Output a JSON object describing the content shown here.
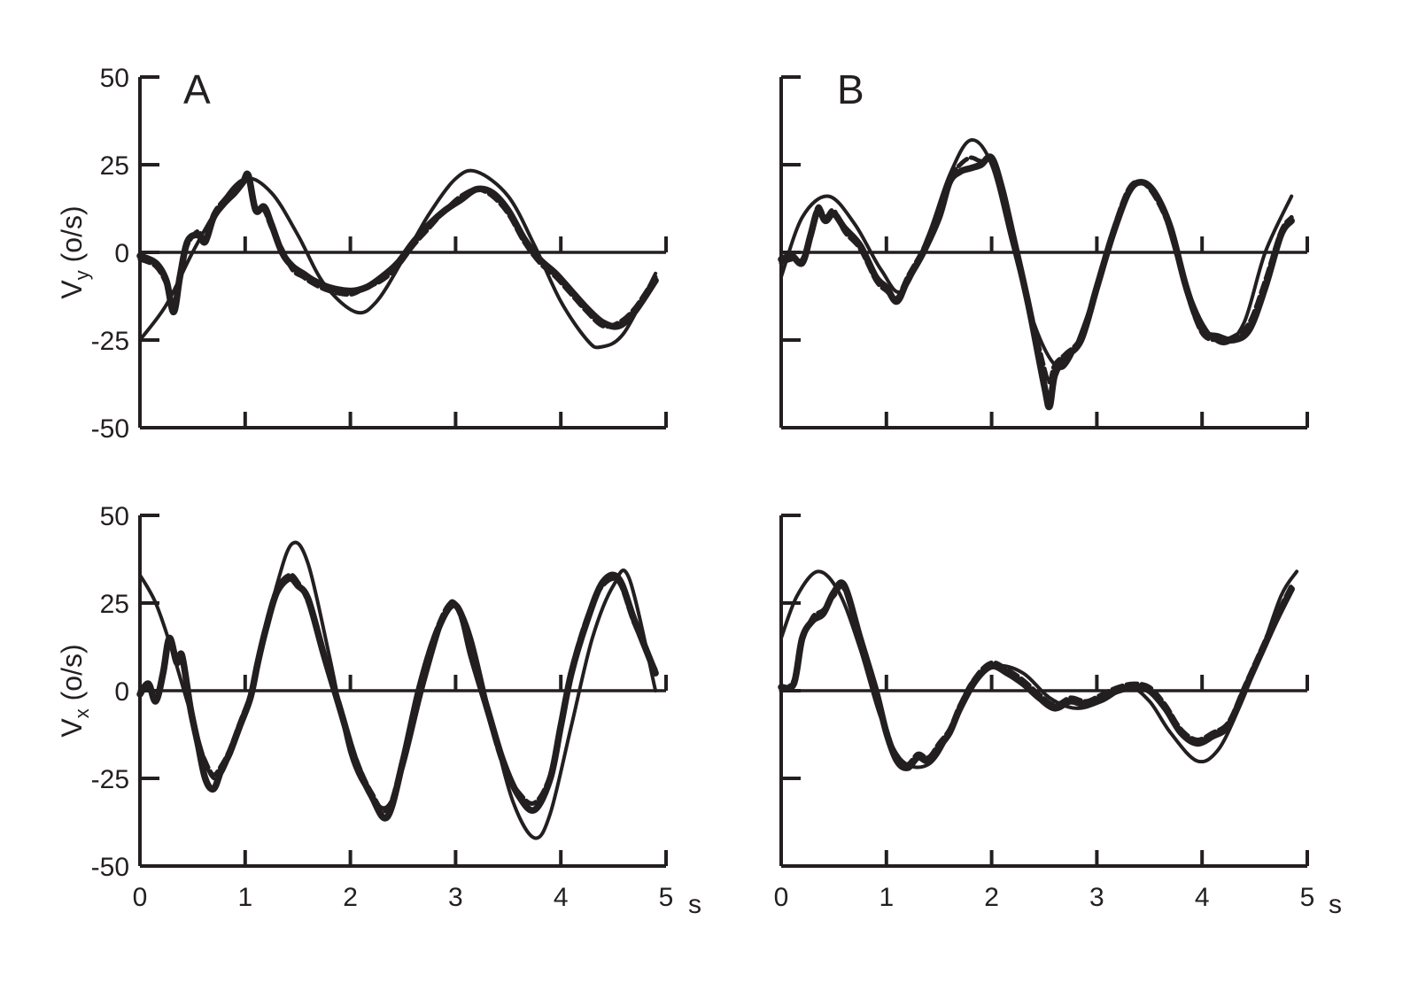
{
  "colors": {
    "ink": "#231f20",
    "background": "#ffffff"
  },
  "y_axis_labels": {
    "top": {
      "main": "V",
      "sub": "y",
      "unit": " (o/s)"
    },
    "bottom": {
      "main": "V",
      "sub": "x",
      "unit": " (o/s)"
    }
  },
  "x_unit": "s",
  "chart_data": [
    {
      "type": "line",
      "panel": "A-top",
      "letter": "A",
      "xlim": [
        0,
        5
      ],
      "ylim": [
        -50,
        50
      ],
      "xticks": [
        0,
        1,
        2,
        3,
        4,
        5
      ],
      "yticks": [
        -50,
        -25,
        0,
        25,
        50
      ],
      "ytick_labels": [
        "-50",
        "-25",
        "0",
        "25",
        "50"
      ],
      "xtick_labels": [],
      "series": [
        {
          "style": "thin",
          "x": [
            0,
            0.25,
            0.5,
            0.75,
            1.0,
            1.25,
            1.5,
            1.75,
            2.05,
            2.25,
            2.5,
            2.75,
            3.0,
            3.2,
            3.5,
            3.75,
            4.0,
            4.25,
            4.38,
            4.6,
            4.9
          ],
          "y": [
            -25,
            -15,
            0,
            13,
            21,
            17,
            5,
            -9,
            -17,
            -14,
            -2,
            11,
            21,
            23,
            16,
            2,
            -14,
            -25,
            -27,
            -23,
            -6
          ]
        },
        {
          "style": "thick",
          "x": [
            0,
            0.15,
            0.25,
            0.32,
            0.38,
            0.45,
            0.55,
            0.62,
            0.7,
            0.8,
            0.9,
            0.98,
            1.03,
            1.1,
            1.18,
            1.25,
            1.35,
            1.45,
            1.55,
            1.65,
            1.8,
            2.0,
            2.15,
            2.3,
            2.45,
            2.6,
            2.75,
            2.9,
            3.05,
            3.2,
            3.35,
            3.5,
            3.65,
            3.8,
            3.95,
            4.1,
            4.25,
            4.4,
            4.55,
            4.7,
            4.9
          ],
          "y": [
            -1,
            -3,
            -8,
            -17,
            -7,
            3,
            5,
            3,
            10,
            14,
            17,
            20,
            22,
            12,
            13,
            8,
            0,
            -4,
            -6,
            -8,
            -10,
            -11,
            -10,
            -7,
            -3,
            3,
            8,
            12,
            15,
            18,
            17,
            12,
            4,
            -2,
            -6,
            -11,
            -16,
            -20,
            -21,
            -17,
            -8
          ]
        },
        {
          "style": "dashed",
          "x": [
            0,
            0.15,
            0.25,
            0.32,
            0.38,
            0.45,
            0.55,
            0.62,
            0.7,
            0.8,
            0.9,
            0.98,
            1.03,
            1.1,
            1.18,
            1.25,
            1.35,
            1.45,
            1.55,
            1.65,
            1.8,
            2.0,
            2.15,
            2.3,
            2.45,
            2.6,
            2.75,
            2.9,
            3.05,
            3.2,
            3.35,
            3.5,
            3.65,
            3.8,
            3.95,
            4.1,
            4.25,
            4.4,
            4.55,
            4.7,
            4.9
          ],
          "y": [
            -2,
            -4,
            -9,
            -16,
            -6,
            2,
            6,
            4,
            11,
            15,
            18,
            20,
            21,
            13,
            12,
            7,
            1,
            -5,
            -7,
            -9,
            -11,
            -12,
            -10,
            -8,
            -4,
            2,
            7,
            12,
            16,
            18,
            16,
            11,
            3,
            -3,
            -7,
            -12,
            -17,
            -21,
            -20,
            -16,
            -7
          ]
        }
      ]
    },
    {
      "type": "line",
      "panel": "B-top",
      "letter": "B",
      "xlim": [
        0,
        5
      ],
      "ylim": [
        -50,
        50
      ],
      "xticks": [
        0,
        1,
        2,
        3,
        4,
        5
      ],
      "yticks": [
        -50,
        -25,
        0,
        25,
        50
      ],
      "ytick_labels": [],
      "xtick_labels": [],
      "series": [
        {
          "style": "thin",
          "x": [
            0,
            0.2,
            0.45,
            0.7,
            0.95,
            1.15,
            1.4,
            1.6,
            1.8,
            2.0,
            2.2,
            2.4,
            2.6,
            2.75,
            3.0,
            3.2,
            3.4,
            3.6,
            3.8,
            4.0,
            4.2,
            4.4,
            4.6,
            4.85
          ],
          "y": [
            -7,
            10,
            16,
            8,
            -5,
            -11,
            5,
            22,
            32,
            25,
            2,
            -20,
            -32,
            -30,
            -10,
            10,
            20,
            14,
            -5,
            -20,
            -26,
            -20,
            0,
            16
          ]
        },
        {
          "style": "thick",
          "x": [
            0,
            0.1,
            0.2,
            0.28,
            0.35,
            0.42,
            0.5,
            0.6,
            0.75,
            0.9,
            1.0,
            1.1,
            1.2,
            1.35,
            1.5,
            1.6,
            1.7,
            1.8,
            1.9,
            2.0,
            2.1,
            2.2,
            2.35,
            2.5,
            2.55,
            2.6,
            2.7,
            2.85,
            3.0,
            3.15,
            3.3,
            3.42,
            3.55,
            3.7,
            3.85,
            4.0,
            4.15,
            4.3,
            4.45,
            4.6,
            4.75,
            4.85
          ],
          "y": [
            -2,
            -1,
            -3,
            5,
            12,
            9,
            11,
            7,
            2,
            -7,
            -10,
            -14,
            -8,
            0,
            10,
            20,
            23,
            24,
            25,
            27,
            18,
            5,
            -15,
            -38,
            -44,
            -35,
            -30,
            -25,
            -10,
            5,
            17,
            20,
            17,
            7,
            -10,
            -22,
            -24,
            -25,
            -22,
            -10,
            5,
            9
          ]
        },
        {
          "style": "dashed",
          "x": [
            0,
            0.1,
            0.2,
            0.28,
            0.35,
            0.42,
            0.5,
            0.6,
            0.75,
            0.9,
            1.0,
            1.1,
            1.2,
            1.35,
            1.5,
            1.6,
            1.7,
            1.8,
            1.9,
            2.0,
            2.1,
            2.2,
            2.35,
            2.5,
            2.55,
            2.6,
            2.7,
            2.85,
            3.0,
            3.15,
            3.3,
            3.42,
            3.55,
            3.7,
            3.85,
            4.0,
            4.15,
            4.3,
            4.45,
            4.6,
            4.75,
            4.85
          ],
          "y": [
            -3,
            -2,
            -2,
            6,
            13,
            10,
            12,
            6,
            1,
            -8,
            -11,
            -13,
            -7,
            1,
            11,
            21,
            25,
            27,
            26,
            27,
            19,
            6,
            -14,
            -33,
            -37,
            -32,
            -29,
            -24,
            -9,
            6,
            18,
            20,
            16,
            6,
            -11,
            -23,
            -25,
            -24,
            -20,
            -8,
            6,
            10
          ]
        }
      ]
    },
    {
      "type": "line",
      "panel": "A-bottom",
      "letter": "",
      "xlim": [
        0,
        5
      ],
      "ylim": [
        -50,
        50
      ],
      "xticks": [
        0,
        1,
        2,
        3,
        4,
        5
      ],
      "yticks": [
        -50,
        -25,
        0,
        25,
        50
      ],
      "ytick_labels": [
        "-50",
        "-25",
        "0",
        "25",
        "50"
      ],
      "xtick_labels": [
        "0",
        "1",
        "2",
        "3",
        "4",
        "5"
      ],
      "series": [
        {
          "style": "thin",
          "x": [
            0,
            0.15,
            0.3,
            0.5,
            0.7,
            0.9,
            1.1,
            1.3,
            1.45,
            1.6,
            1.8,
            2.0,
            2.2,
            2.35,
            2.5,
            2.7,
            2.9,
            3.0,
            3.15,
            3.35,
            3.55,
            3.75,
            3.9,
            4.1,
            4.3,
            4.5,
            4.65,
            4.9
          ],
          "y": [
            33,
            25,
            12,
            -8,
            -25,
            -15,
            5,
            30,
            42,
            36,
            10,
            -18,
            -30,
            -33,
            -22,
            2,
            22,
            25,
            15,
            -10,
            -32,
            -42,
            -35,
            -10,
            15,
            30,
            32,
            0
          ]
        },
        {
          "style": "thick",
          "x": [
            0,
            0.08,
            0.15,
            0.22,
            0.28,
            0.35,
            0.4,
            0.48,
            0.55,
            0.62,
            0.7,
            0.78,
            0.85,
            0.95,
            1.05,
            1.12,
            1.2,
            1.3,
            1.42,
            1.5,
            1.6,
            1.75,
            1.9,
            2.05,
            2.2,
            2.35,
            2.5,
            2.65,
            2.8,
            2.95,
            3.05,
            3.15,
            3.3,
            3.45,
            3.6,
            3.75,
            3.9,
            4.0,
            4.1,
            4.25,
            4.4,
            4.55,
            4.7,
            4.9
          ],
          "y": [
            -1,
            2,
            -3,
            5,
            15,
            8,
            10,
            -5,
            -15,
            -25,
            -28,
            -22,
            -18,
            -10,
            -2,
            8,
            18,
            28,
            32,
            30,
            26,
            10,
            -5,
            -20,
            -30,
            -36,
            -20,
            0,
            15,
            24,
            22,
            10,
            -5,
            -20,
            -30,
            -34,
            -25,
            -10,
            5,
            20,
            31,
            32,
            20,
            5
          ]
        },
        {
          "style": "dashed",
          "x": [
            0,
            0.08,
            0.15,
            0.22,
            0.28,
            0.35,
            0.4,
            0.48,
            0.55,
            0.62,
            0.7,
            0.78,
            0.85,
            0.95,
            1.05,
            1.12,
            1.2,
            1.3,
            1.42,
            1.5,
            1.6,
            1.75,
            1.9,
            2.05,
            2.2,
            2.35,
            2.5,
            2.65,
            2.8,
            2.95,
            3.05,
            3.15,
            3.3,
            3.45,
            3.6,
            3.75,
            3.9,
            4.0,
            4.1,
            4.25,
            4.4,
            4.55,
            4.7,
            4.9
          ],
          "y": [
            0,
            1,
            -2,
            6,
            14,
            9,
            9,
            -4,
            -14,
            -20,
            -24,
            -21,
            -17,
            -9,
            -1,
            9,
            19,
            29,
            33,
            31,
            25,
            11,
            -4,
            -19,
            -29,
            -34,
            -19,
            1,
            16,
            25,
            21,
            9,
            -6,
            -21,
            -29,
            -32,
            -24,
            -9,
            6,
            21,
            30,
            31,
            19,
            6
          ]
        }
      ]
    },
    {
      "type": "line",
      "panel": "B-bottom",
      "letter": "",
      "xlim": [
        0,
        5
      ],
      "ylim": [
        -50,
        50
      ],
      "xticks": [
        0,
        1,
        2,
        3,
        4,
        5
      ],
      "yticks": [
        -50,
        -25,
        0,
        25,
        50
      ],
      "ytick_labels": [],
      "xtick_labels": [
        "0",
        "1",
        "2",
        "3",
        "4",
        "5"
      ],
      "series": [
        {
          "style": "thin",
          "x": [
            0,
            0.15,
            0.35,
            0.55,
            0.75,
            0.95,
            1.15,
            1.4,
            1.6,
            1.8,
            2.05,
            2.3,
            2.55,
            2.8,
            3.05,
            3.3,
            3.5,
            3.7,
            3.95,
            4.15,
            4.35,
            4.55,
            4.75,
            4.9
          ],
          "y": [
            15,
            27,
            34,
            28,
            12,
            -8,
            -20,
            -21,
            -12,
            2,
            7,
            5,
            -2,
            -5,
            -3,
            1,
            -3,
            -12,
            -20,
            -17,
            -5,
            10,
            27,
            34
          ]
        },
        {
          "style": "thick",
          "x": [
            0,
            0.12,
            0.2,
            0.3,
            0.4,
            0.5,
            0.6,
            0.75,
            0.9,
            1.0,
            1.1,
            1.2,
            1.3,
            1.4,
            1.5,
            1.6,
            1.7,
            1.85,
            2.0,
            2.15,
            2.3,
            2.45,
            2.6,
            2.75,
            2.9,
            3.05,
            3.2,
            3.35,
            3.5,
            3.65,
            3.8,
            3.95,
            4.1,
            4.25,
            4.4,
            4.55,
            4.7,
            4.85
          ],
          "y": [
            1,
            2,
            15,
            20,
            22,
            28,
            30,
            15,
            0,
            -12,
            -20,
            -22,
            -19,
            -20,
            -16,
            -12,
            -5,
            3,
            7,
            5,
            2,
            -2,
            -5,
            -3,
            -4,
            -2,
            0,
            1,
            0,
            -5,
            -12,
            -15,
            -13,
            -10,
            0,
            10,
            20,
            29
          ]
        },
        {
          "style": "dashed",
          "x": [
            0,
            0.12,
            0.2,
            0.3,
            0.4,
            0.5,
            0.6,
            0.75,
            0.9,
            1.0,
            1.1,
            1.2,
            1.3,
            1.4,
            1.5,
            1.6,
            1.7,
            1.85,
            2.0,
            2.15,
            2.3,
            2.45,
            2.6,
            2.75,
            2.9,
            3.05,
            3.2,
            3.35,
            3.5,
            3.65,
            3.8,
            3.95,
            4.1,
            4.25,
            4.4,
            4.55,
            4.7,
            4.85
          ],
          "y": [
            0,
            3,
            14,
            21,
            23,
            27,
            29,
            14,
            1,
            -11,
            -19,
            -21,
            -18,
            -19,
            -15,
            -11,
            -4,
            4,
            8,
            6,
            3,
            -1,
            -4,
            -2,
            -3,
            -1,
            1,
            2,
            1,
            -4,
            -11,
            -14,
            -12,
            -9,
            1,
            11,
            21,
            30
          ]
        }
      ]
    }
  ]
}
